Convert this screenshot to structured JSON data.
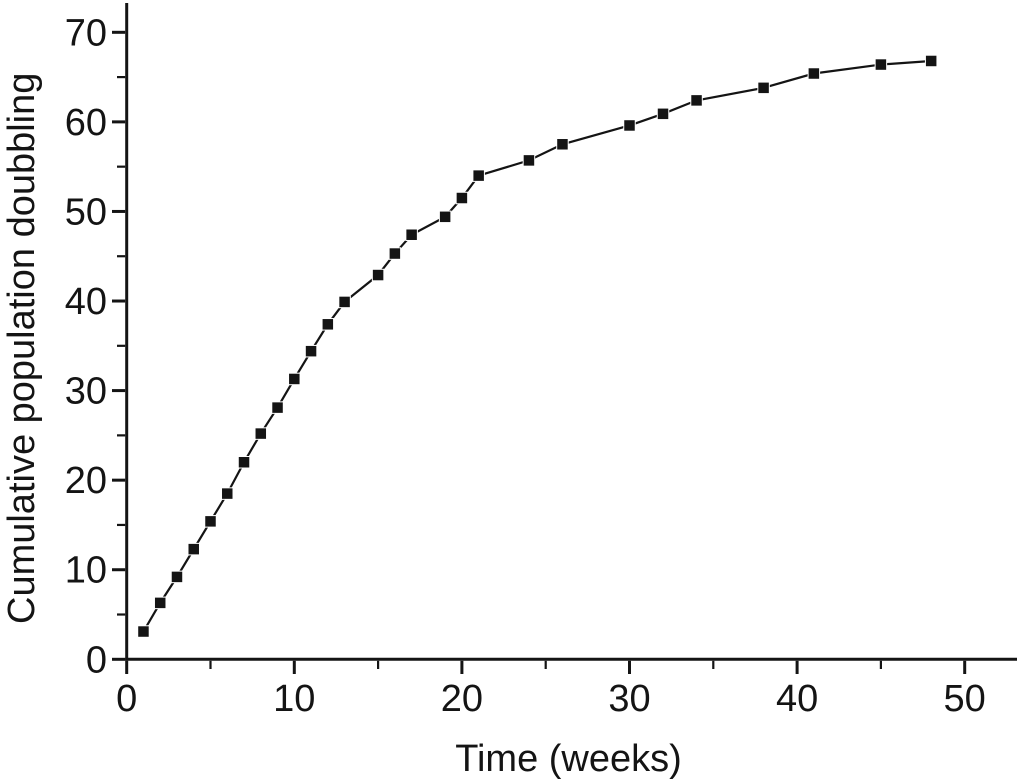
{
  "page": {
    "background": "#ffffff",
    "text_color": "#141414"
  },
  "chart_data": {
    "type": "line",
    "title": "",
    "xlabel": "Time (weeks)",
    "ylabel": "Cumulative population doubbling",
    "series": [
      {
        "name": "cumulative-population-doubling",
        "x": [
          1,
          2,
          3,
          4,
          5,
          6,
          7,
          8,
          9,
          10,
          11,
          12,
          13,
          15,
          16,
          17,
          19,
          20,
          21,
          24,
          26,
          30,
          32,
          34,
          38,
          41,
          45,
          48
        ],
        "y": [
          3.1,
          6.3,
          9.2,
          12.3,
          15.4,
          18.5,
          22.0,
          25.2,
          28.1,
          31.3,
          34.4,
          37.4,
          39.9,
          42.9,
          45.3,
          47.4,
          49.4,
          51.5,
          54.0,
          55.7,
          57.5,
          59.6,
          60.9,
          62.4,
          63.8,
          65.4,
          66.4,
          66.8
        ]
      }
    ],
    "xlim": [
      0,
      53
    ],
    "ylim": [
      0,
      73.3
    ],
    "x_major_ticks": [
      0,
      10,
      20,
      30,
      40,
      50
    ],
    "x_minor_ticks": [
      5,
      15,
      25,
      35,
      45
    ],
    "y_major_ticks": [
      0,
      10,
      20,
      30,
      40,
      50,
      60,
      70
    ],
    "y_minor_ticks": [
      5,
      15,
      25,
      35,
      45,
      55,
      65
    ],
    "grid": false,
    "legend": null,
    "marker": "filled-square",
    "line_color": "#141414",
    "marker_color": "#141414",
    "axis_color": "#141414"
  }
}
